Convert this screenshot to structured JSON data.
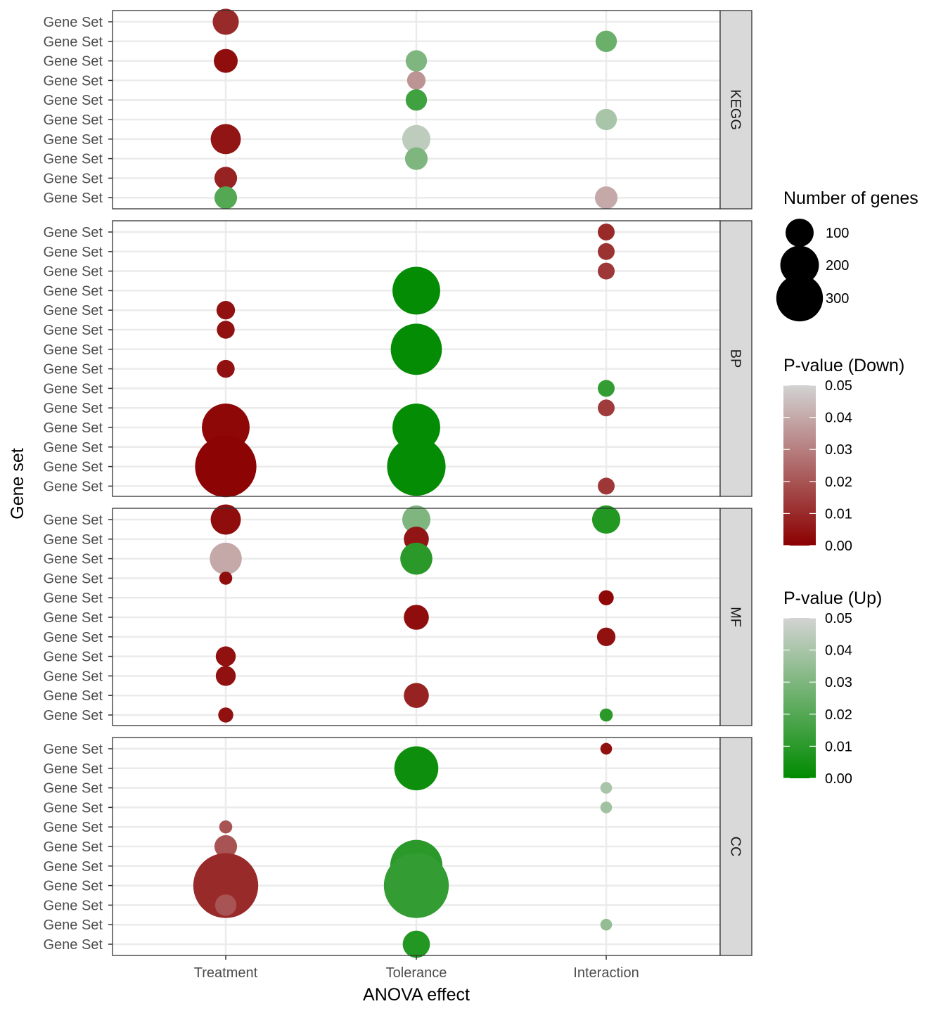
{
  "chart_data": {
    "type": "scatter",
    "xlabel": "ANOVA effect",
    "ylabel": "Gene set",
    "x_categories": [
      "Treatment",
      "Tolerance",
      "Interaction"
    ],
    "row_label": "Gene Set",
    "facets": [
      {
        "name": "KEGG",
        "rows": 10,
        "points": [
          {
            "row": 1,
            "effect": "Treatment",
            "direction": "down",
            "p": 0.01,
            "genes": 60
          },
          {
            "row": 2,
            "effect": "Interaction",
            "direction": "up",
            "p": 0.025,
            "genes": 40
          },
          {
            "row": 3,
            "effect": "Treatment",
            "direction": "down",
            "p": 0.003,
            "genes": 50
          },
          {
            "row": 3,
            "effect": "Tolerance",
            "direction": "up",
            "p": 0.03,
            "genes": 40
          },
          {
            "row": 4,
            "effect": "Tolerance",
            "direction": "down",
            "p": 0.035,
            "genes": 30
          },
          {
            "row": 5,
            "effect": "Tolerance",
            "direction": "up",
            "p": 0.015,
            "genes": 40
          },
          {
            "row": 6,
            "effect": "Interaction",
            "direction": "up",
            "p": 0.04,
            "genes": 40
          },
          {
            "row": 7,
            "effect": "Treatment",
            "direction": "down",
            "p": 0.005,
            "genes": 80
          },
          {
            "row": 7,
            "effect": "Tolerance",
            "direction": "up",
            "p": 0.045,
            "genes": 70
          },
          {
            "row": 8,
            "effect": "Tolerance",
            "direction": "up",
            "p": 0.03,
            "genes": 45
          },
          {
            "row": 9,
            "effect": "Treatment",
            "direction": "down",
            "p": 0.008,
            "genes": 45
          },
          {
            "row": 10,
            "effect": "Treatment",
            "direction": "up",
            "p": 0.02,
            "genes": 45
          },
          {
            "row": 10,
            "effect": "Interaction",
            "direction": "down",
            "p": 0.04,
            "genes": 45
          }
        ]
      },
      {
        "name": "BP",
        "rows": 14,
        "points": [
          {
            "row": 1,
            "effect": "Interaction",
            "direction": "down",
            "p": 0.01,
            "genes": 25
          },
          {
            "row": 2,
            "effect": "Interaction",
            "direction": "down",
            "p": 0.012,
            "genes": 25
          },
          {
            "row": 3,
            "effect": "Interaction",
            "direction": "down",
            "p": 0.013,
            "genes": 25
          },
          {
            "row": 4,
            "effect": "Tolerance",
            "direction": "up",
            "p": 0.001,
            "genes": 200
          },
          {
            "row": 5,
            "effect": "Treatment",
            "direction": "down",
            "p": 0.004,
            "genes": 30
          },
          {
            "row": 6,
            "effect": "Treatment",
            "direction": "down",
            "p": 0.004,
            "genes": 28
          },
          {
            "row": 7,
            "effect": "Tolerance",
            "direction": "up",
            "p": 0.001,
            "genes": 230
          },
          {
            "row": 8,
            "effect": "Treatment",
            "direction": "down",
            "p": 0.004,
            "genes": 28
          },
          {
            "row": 9,
            "effect": "Interaction",
            "direction": "up",
            "p": 0.012,
            "genes": 25
          },
          {
            "row": 10,
            "effect": "Interaction",
            "direction": "down",
            "p": 0.014,
            "genes": 25
          },
          {
            "row": 11,
            "effect": "Treatment",
            "direction": "down",
            "p": 0.002,
            "genes": 200
          },
          {
            "row": 11,
            "effect": "Tolerance",
            "direction": "up",
            "p": 0.001,
            "genes": 200
          },
          {
            "row": 12,
            "effect": "Treatment",
            "direction": "down",
            "p": 0.003,
            "genes": 25
          },
          {
            "row": 13,
            "effect": "Treatment",
            "direction": "down",
            "p": 0.001,
            "genes": 330
          },
          {
            "row": 13,
            "effect": "Tolerance",
            "direction": "up",
            "p": 0.001,
            "genes": 300
          },
          {
            "row": 14,
            "effect": "Interaction",
            "direction": "down",
            "p": 0.013,
            "genes": 25
          }
        ]
      },
      {
        "name": "MF",
        "rows": 11,
        "points": [
          {
            "row": 1,
            "effect": "Treatment",
            "direction": "down",
            "p": 0.003,
            "genes": 80
          },
          {
            "row": 1,
            "effect": "Tolerance",
            "direction": "up",
            "p": 0.03,
            "genes": 70
          },
          {
            "row": 1,
            "effect": "Interaction",
            "direction": "up",
            "p": 0.008,
            "genes": 70
          },
          {
            "row": 2,
            "effect": "Tolerance",
            "direction": "down",
            "p": 0.005,
            "genes": 55
          },
          {
            "row": 3,
            "effect": "Treatment",
            "direction": "down",
            "p": 0.04,
            "genes": 90
          },
          {
            "row": 3,
            "effect": "Tolerance",
            "direction": "up",
            "p": 0.01,
            "genes": 90
          },
          {
            "row": 4,
            "effect": "Treatment",
            "direction": "down",
            "p": 0.003,
            "genes": 15
          },
          {
            "row": 5,
            "effect": "Interaction",
            "direction": "down",
            "p": 0.002,
            "genes": 20
          },
          {
            "row": 6,
            "effect": "Tolerance",
            "direction": "down",
            "p": 0.003,
            "genes": 55
          },
          {
            "row": 7,
            "effect": "Interaction",
            "direction": "down",
            "p": 0.004,
            "genes": 30
          },
          {
            "row": 8,
            "effect": "Treatment",
            "direction": "down",
            "p": 0.004,
            "genes": 35
          },
          {
            "row": 9,
            "effect": "Treatment",
            "direction": "down",
            "p": 0.004,
            "genes": 35
          },
          {
            "row": 10,
            "effect": "Tolerance",
            "direction": "down",
            "p": 0.008,
            "genes": 55
          },
          {
            "row": 11,
            "effect": "Treatment",
            "direction": "down",
            "p": 0.004,
            "genes": 20
          },
          {
            "row": 11,
            "effect": "Interaction",
            "direction": "up",
            "p": 0.01,
            "genes": 15
          }
        ]
      },
      {
        "name": "CC",
        "rows": 11,
        "points": [
          {
            "row": 1,
            "effect": "Interaction",
            "direction": "down",
            "p": 0.004,
            "genes": 12
          },
          {
            "row": 2,
            "effect": "Tolerance",
            "direction": "up",
            "p": 0.003,
            "genes": 170
          },
          {
            "row": 3,
            "effect": "Interaction",
            "direction": "up",
            "p": 0.04,
            "genes": 12
          },
          {
            "row": 4,
            "effect": "Interaction",
            "direction": "up",
            "p": 0.038,
            "genes": 12
          },
          {
            "row": 5,
            "effect": "Treatment",
            "direction": "down",
            "p": 0.02,
            "genes": 15
          },
          {
            "row": 6,
            "effect": "Treatment",
            "direction": "down",
            "p": 0.02,
            "genes": 45
          },
          {
            "row": 7,
            "effect": "Tolerance",
            "direction": "up",
            "p": 0.01,
            "genes": 240
          },
          {
            "row": 8,
            "effect": "Treatment",
            "direction": "down",
            "p": 0.01,
            "genes": 370
          },
          {
            "row": 8,
            "effect": "Tolerance",
            "direction": "up",
            "p": 0.012,
            "genes": 370
          },
          {
            "row": 9,
            "effect": "Treatment",
            "direction": "down",
            "p": 0.02,
            "genes": 40
          },
          {
            "row": 10,
            "effect": "Interaction",
            "direction": "up",
            "p": 0.035,
            "genes": 12
          },
          {
            "row": 11,
            "effect": "Tolerance",
            "direction": "up",
            "p": 0.008,
            "genes": 65
          }
        ]
      }
    ],
    "size_legend": {
      "title": "Number of genes",
      "breaks": [
        100,
        200,
        300
      ],
      "labels": [
        "100",
        "200",
        "300"
      ]
    },
    "color_legends": [
      {
        "title": "P-value (Down)",
        "low_color": "#8b0000",
        "high_color": "#d3d3d3",
        "breaks": [
          "0.05",
          "0.04",
          "0.03",
          "0.02",
          "0.01",
          "0.00"
        ],
        "limits": [
          0,
          0.05
        ]
      },
      {
        "title": "P-value (Up)",
        "low_color": "#008b00",
        "high_color": "#d3d3d3",
        "breaks": [
          "0.05",
          "0.04",
          "0.03",
          "0.02",
          "0.01",
          "0.00"
        ],
        "limits": [
          0,
          0.05
        ]
      }
    ],
    "grid": true,
    "legend_position": "right",
    "strip_fill": "#d9d9d9",
    "grid_color": "#ebebeb"
  }
}
